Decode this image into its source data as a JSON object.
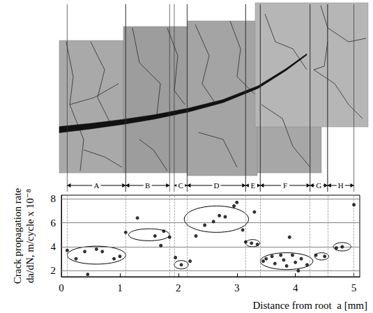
{
  "chart_data": {
    "type": "scatter",
    "x_label": "Distance from root  a [mm]",
    "y_label": "Crack propagation rate\nda/dN, m/cycle x 10⁻⁸",
    "x": [
      0.1,
      0.25,
      0.4,
      0.45,
      0.6,
      0.7,
      0.9,
      1.0,
      1.1,
      1.3,
      1.6,
      1.7,
      1.75,
      1.85,
      1.95,
      2.05,
      2.2,
      2.3,
      2.45,
      2.6,
      2.7,
      2.8,
      2.95,
      3.0,
      3.1,
      3.15,
      3.25,
      3.3,
      3.35,
      3.45,
      3.5,
      3.6,
      3.65,
      3.75,
      3.8,
      3.85,
      3.9,
      3.95,
      4.0,
      4.05,
      4.1,
      4.2,
      4.35,
      4.5,
      4.7,
      4.8,
      5.0
    ],
    "values": [
      3.7,
      3.0,
      3.6,
      1.7,
      3.8,
      3.6,
      3.0,
      3.2,
      5.2,
      6.4,
      4.9,
      4.1,
      5.3,
      4.8,
      3.1,
      2.5,
      2.8,
      4.9,
      5.8,
      6.1,
      6.6,
      6.5,
      7.4,
      7.7,
      5.4,
      4.4,
      4.3,
      6.9,
      4.2,
      2.8,
      3.0,
      3.2,
      2.6,
      3.3,
      2.9,
      2.4,
      4.8,
      3.3,
      2.7,
      2.0,
      3.0,
      2.5,
      3.3,
      3.2,
      3.9,
      4.0,
      7.5
    ],
    "color": "#000000",
    "marker": "circle",
    "xlim": [
      0,
      5.1
    ],
    "xticks": [
      0,
      1,
      2,
      3,
      4,
      5
    ],
    "ylim": [
      1.5,
      8.3
    ],
    "yticks": [
      2,
      4,
      6,
      8
    ],
    "grid": true,
    "segments": [
      {
        "label": "A",
        "start": 0.1,
        "end": 1.1
      },
      {
        "label": "B",
        "start": 1.1,
        "end": 1.85
      },
      {
        "label": "C",
        "start": 1.93,
        "end": 2.15
      },
      {
        "label": "D",
        "start": 2.15,
        "end": 3.15
      },
      {
        "label": "E",
        "start": 3.15,
        "end": 3.4
      },
      {
        "label": "F",
        "start": 3.4,
        "end": 4.25
      },
      {
        "label": "G",
        "start": 4.25,
        "end": 4.55
      },
      {
        "label": "H",
        "start": 4.55,
        "end": 5.0
      }
    ],
    "groups": [
      {
        "segment": "A",
        "cx": 0.6,
        "cy": 3.3,
        "rx": 0.5,
        "ry": 0.75
      },
      {
        "segment": "B",
        "cx": 1.5,
        "cy": 5.0,
        "rx": 0.35,
        "ry": 0.5
      },
      {
        "segment": "C",
        "cx": 2.05,
        "cy": 2.5,
        "rx": 0.12,
        "ry": 0.35
      },
      {
        "segment": "D",
        "cx": 2.65,
        "cy": 6.3,
        "rx": 0.55,
        "ry": 1.1
      },
      {
        "segment": "E",
        "cx": 3.27,
        "cy": 4.3,
        "rx": 0.12,
        "ry": 0.3
      },
      {
        "segment": "F",
        "cx": 3.85,
        "cy": 2.8,
        "rx": 0.45,
        "ry": 0.7
      },
      {
        "segment": "G",
        "cx": 4.45,
        "cy": 3.2,
        "rx": 0.12,
        "ry": 0.3
      },
      {
        "segment": "H",
        "cx": 4.8,
        "cy": 4.0,
        "rx": 0.15,
        "ry": 0.35
      }
    ]
  }
}
